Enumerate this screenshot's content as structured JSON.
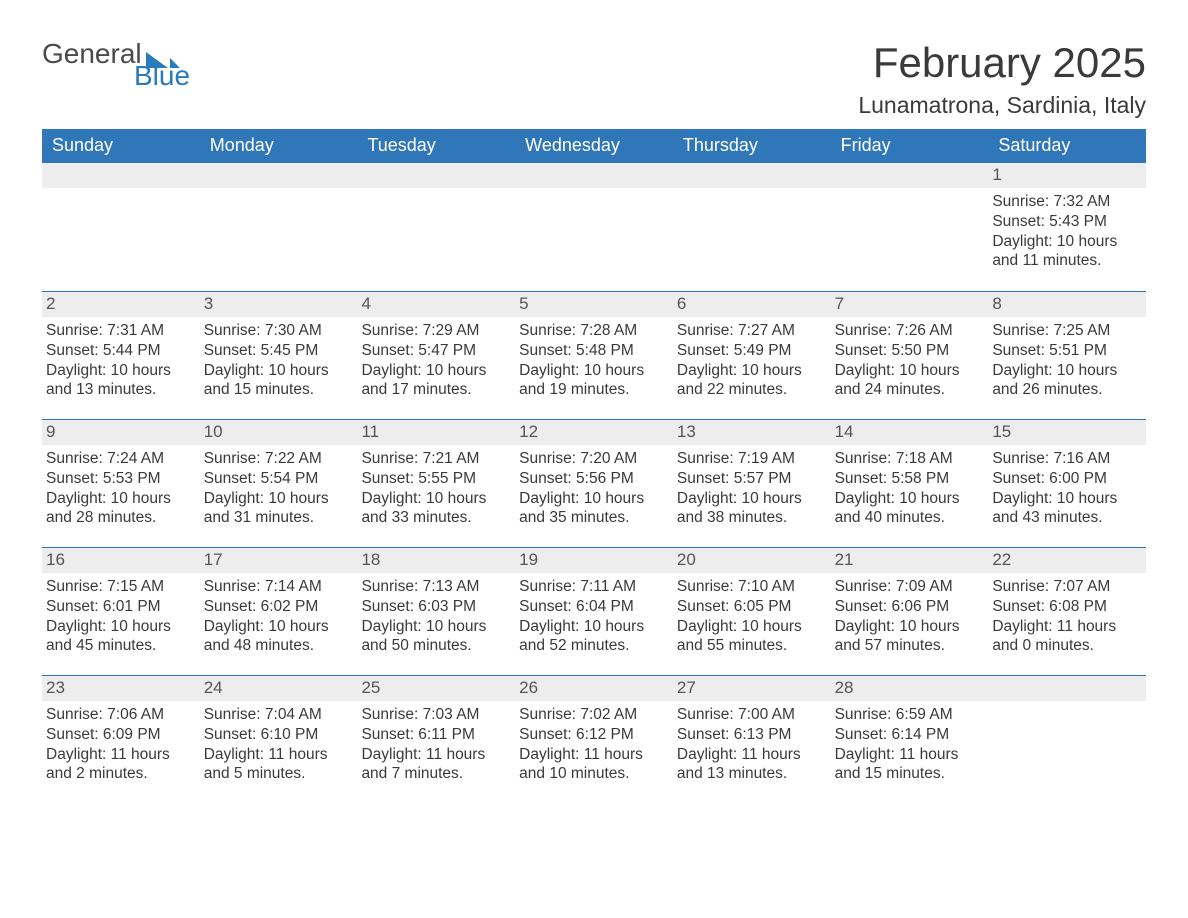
{
  "logo": {
    "text_general": "General",
    "text_blue": "Blue"
  },
  "title": "February 2025",
  "location": "Lunamatrona, Sardinia, Italy",
  "colors": {
    "header_bg": "#2f77b8",
    "header_text": "#ffffff",
    "daynum_bg": "#ededed",
    "body_text": "#3a3a3a",
    "logo_blue": "#2a7bbd",
    "row_border": "#2f77b8",
    "page_bg": "#ffffff"
  },
  "labels": {
    "sunrise": "Sunrise:",
    "sunset": "Sunset:",
    "daylight": "Daylight:"
  },
  "dow": [
    "Sunday",
    "Monday",
    "Tuesday",
    "Wednesday",
    "Thursday",
    "Friday",
    "Saturday"
  ],
  "weeks": [
    [
      null,
      null,
      null,
      null,
      null,
      null,
      {
        "n": "1",
        "sunrise": "7:32 AM",
        "sunset": "5:43 PM",
        "daylight": "10 hours and 11 minutes."
      }
    ],
    [
      {
        "n": "2",
        "sunrise": "7:31 AM",
        "sunset": "5:44 PM",
        "daylight": "10 hours and 13 minutes."
      },
      {
        "n": "3",
        "sunrise": "7:30 AM",
        "sunset": "5:45 PM",
        "daylight": "10 hours and 15 minutes."
      },
      {
        "n": "4",
        "sunrise": "7:29 AM",
        "sunset": "5:47 PM",
        "daylight": "10 hours and 17 minutes."
      },
      {
        "n": "5",
        "sunrise": "7:28 AM",
        "sunset": "5:48 PM",
        "daylight": "10 hours and 19 minutes."
      },
      {
        "n": "6",
        "sunrise": "7:27 AM",
        "sunset": "5:49 PM",
        "daylight": "10 hours and 22 minutes."
      },
      {
        "n": "7",
        "sunrise": "7:26 AM",
        "sunset": "5:50 PM",
        "daylight": "10 hours and 24 minutes."
      },
      {
        "n": "8",
        "sunrise": "7:25 AM",
        "sunset": "5:51 PM",
        "daylight": "10 hours and 26 minutes."
      }
    ],
    [
      {
        "n": "9",
        "sunrise": "7:24 AM",
        "sunset": "5:53 PM",
        "daylight": "10 hours and 28 minutes."
      },
      {
        "n": "10",
        "sunrise": "7:22 AM",
        "sunset": "5:54 PM",
        "daylight": "10 hours and 31 minutes."
      },
      {
        "n": "11",
        "sunrise": "7:21 AM",
        "sunset": "5:55 PM",
        "daylight": "10 hours and 33 minutes."
      },
      {
        "n": "12",
        "sunrise": "7:20 AM",
        "sunset": "5:56 PM",
        "daylight": "10 hours and 35 minutes."
      },
      {
        "n": "13",
        "sunrise": "7:19 AM",
        "sunset": "5:57 PM",
        "daylight": "10 hours and 38 minutes."
      },
      {
        "n": "14",
        "sunrise": "7:18 AM",
        "sunset": "5:58 PM",
        "daylight": "10 hours and 40 minutes."
      },
      {
        "n": "15",
        "sunrise": "7:16 AM",
        "sunset": "6:00 PM",
        "daylight": "10 hours and 43 minutes."
      }
    ],
    [
      {
        "n": "16",
        "sunrise": "7:15 AM",
        "sunset": "6:01 PM",
        "daylight": "10 hours and 45 minutes."
      },
      {
        "n": "17",
        "sunrise": "7:14 AM",
        "sunset": "6:02 PM",
        "daylight": "10 hours and 48 minutes."
      },
      {
        "n": "18",
        "sunrise": "7:13 AM",
        "sunset": "6:03 PM",
        "daylight": "10 hours and 50 minutes."
      },
      {
        "n": "19",
        "sunrise": "7:11 AM",
        "sunset": "6:04 PM",
        "daylight": "10 hours and 52 minutes."
      },
      {
        "n": "20",
        "sunrise": "7:10 AM",
        "sunset": "6:05 PM",
        "daylight": "10 hours and 55 minutes."
      },
      {
        "n": "21",
        "sunrise": "7:09 AM",
        "sunset": "6:06 PM",
        "daylight": "10 hours and 57 minutes."
      },
      {
        "n": "22",
        "sunrise": "7:07 AM",
        "sunset": "6:08 PM",
        "daylight": "11 hours and 0 minutes."
      }
    ],
    [
      {
        "n": "23",
        "sunrise": "7:06 AM",
        "sunset": "6:09 PM",
        "daylight": "11 hours and 2 minutes."
      },
      {
        "n": "24",
        "sunrise": "7:04 AM",
        "sunset": "6:10 PM",
        "daylight": "11 hours and 5 minutes."
      },
      {
        "n": "25",
        "sunrise": "7:03 AM",
        "sunset": "6:11 PM",
        "daylight": "11 hours and 7 minutes."
      },
      {
        "n": "26",
        "sunrise": "7:02 AM",
        "sunset": "6:12 PM",
        "daylight": "11 hours and 10 minutes."
      },
      {
        "n": "27",
        "sunrise": "7:00 AM",
        "sunset": "6:13 PM",
        "daylight": "11 hours and 13 minutes."
      },
      {
        "n": "28",
        "sunrise": "6:59 AM",
        "sunset": "6:14 PM",
        "daylight": "11 hours and 15 minutes."
      },
      null
    ]
  ]
}
